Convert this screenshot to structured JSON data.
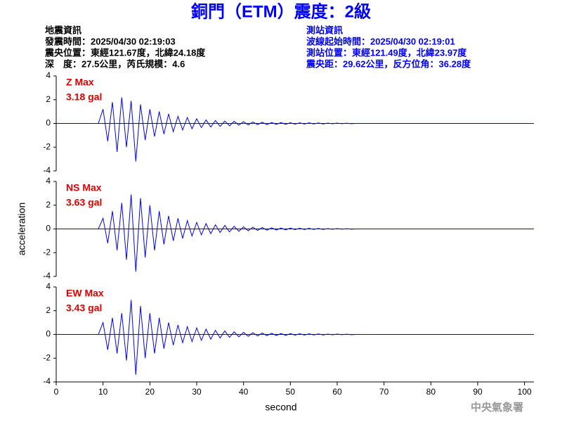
{
  "title": "銅門（ETM）震度：2級",
  "event_info": [
    "地震資訊",
    "發震時間：2025/04/30 02:19:03",
    "震央位置：東經121.67度，北緯24.18度",
    "深　度：27.5公里，芮氏規模：4.6"
  ],
  "station_info": [
    "測站資訊",
    "波線起始時間：2025/04/30 02:19:01",
    "測站位置：東經121.49度，北緯23.97度",
    "震央距：29.62公里，反方位角：36.28度"
  ],
  "footer": "中央氣象署",
  "chart_data": [
    {
      "type": "line",
      "annotation": [
        "Z Max",
        "3.18 gal"
      ],
      "color": "#0000ff",
      "ylim": [
        -4,
        4
      ],
      "yticks": [
        -4,
        -2,
        0,
        2,
        4
      ],
      "xlim": [
        0,
        102
      ],
      "x": [
        0,
        9,
        10,
        11,
        12,
        13,
        14,
        15,
        16,
        17,
        18,
        19,
        20,
        21,
        22,
        23,
        24,
        25,
        26,
        27,
        28,
        29,
        30,
        31,
        32,
        33,
        34,
        35,
        36,
        37,
        38,
        39,
        40,
        41,
        42,
        43,
        44,
        45,
        46,
        47,
        48,
        49,
        50,
        51,
        52,
        53,
        54,
        55,
        56,
        57,
        58,
        59,
        60,
        61,
        62,
        63,
        64,
        101
      ],
      "values": [
        0,
        0,
        1.2,
        -1.5,
        1.8,
        -2.4,
        2.2,
        -2.0,
        1.9,
        -3.2,
        1.6,
        -1.4,
        1.2,
        -1.1,
        1.0,
        -0.9,
        0.8,
        -0.7,
        0.6,
        -0.55,
        0.5,
        -0.45,
        0.4,
        -0.35,
        0.3,
        -0.3,
        0.25,
        -0.25,
        0.2,
        -0.2,
        0.18,
        -0.15,
        0.15,
        -0.12,
        0.12,
        -0.1,
        0.1,
        -0.1,
        0.08,
        -0.08,
        0.07,
        -0.07,
        0.06,
        -0.06,
        0.05,
        -0.05,
        0.05,
        -0.04,
        0.04,
        -0.04,
        0.03,
        -0.03,
        0.03,
        -0.02,
        0.02,
        -0.02,
        0,
        0
      ]
    },
    {
      "type": "line",
      "annotation": [
        "NS Max",
        "3.63 gal"
      ],
      "color": "#0000ff",
      "ylabel": "acceleration",
      "ylim": [
        -4,
        4
      ],
      "yticks": [
        -4,
        -2,
        0,
        2,
        4
      ],
      "xlim": [
        0,
        102
      ],
      "x": [
        0,
        9,
        10,
        11,
        12,
        13,
        14,
        15,
        16,
        17,
        18,
        19,
        20,
        21,
        22,
        23,
        24,
        25,
        26,
        27,
        28,
        29,
        30,
        31,
        32,
        33,
        34,
        35,
        36,
        37,
        38,
        39,
        40,
        41,
        42,
        43,
        44,
        45,
        46,
        47,
        48,
        49,
        50,
        51,
        52,
        53,
        54,
        55,
        56,
        57,
        58,
        59,
        60,
        61,
        62,
        63,
        64,
        101
      ],
      "values": [
        0,
        0,
        0.9,
        -1.2,
        1.5,
        -1.8,
        2.2,
        -2.6,
        2.9,
        -3.6,
        2.6,
        -2.4,
        2.0,
        -1.8,
        1.5,
        -1.3,
        1.1,
        -1.0,
        0.9,
        -0.8,
        0.7,
        -0.6,
        0.55,
        -0.5,
        0.45,
        -0.4,
        0.35,
        -0.3,
        0.3,
        -0.25,
        0.22,
        -0.2,
        0.18,
        -0.16,
        0.15,
        -0.13,
        0.12,
        -0.11,
        0.1,
        -0.09,
        0.08,
        -0.08,
        0.07,
        -0.06,
        0.06,
        -0.05,
        0.05,
        -0.04,
        0.04,
        -0.04,
        0.03,
        -0.03,
        0.03,
        -0.02,
        0.02,
        -0.02,
        0,
        0
      ]
    },
    {
      "type": "line",
      "annotation": [
        "EW Max",
        "3.43 gal"
      ],
      "color": "#0000ff",
      "xlabel": "second",
      "ylim": [
        -4,
        4
      ],
      "yticks": [
        -4,
        -2,
        0,
        2,
        4
      ],
      "xlim": [
        0,
        102
      ],
      "xticks": [
        0,
        10,
        20,
        30,
        40,
        50,
        60,
        70,
        80,
        90,
        100
      ],
      "x": [
        0,
        9,
        10,
        11,
        12,
        13,
        14,
        15,
        16,
        17,
        18,
        19,
        20,
        21,
        22,
        23,
        24,
        25,
        26,
        27,
        28,
        29,
        30,
        31,
        32,
        33,
        34,
        35,
        36,
        37,
        38,
        39,
        40,
        41,
        42,
        43,
        44,
        45,
        46,
        47,
        48,
        49,
        50,
        51,
        52,
        53,
        54,
        55,
        56,
        57,
        58,
        59,
        60,
        61,
        62,
        63,
        64,
        101
      ],
      "values": [
        0,
        0,
        1.0,
        -1.3,
        1.4,
        -1.6,
        1.8,
        -2.2,
        2.9,
        -3.4,
        2.4,
        -2.0,
        1.8,
        -1.6,
        1.4,
        -1.2,
        1.0,
        -0.9,
        0.8,
        -0.7,
        0.65,
        -0.6,
        0.55,
        -0.5,
        0.45,
        -0.4,
        0.35,
        -0.3,
        0.3,
        -0.25,
        0.22,
        -0.2,
        0.18,
        -0.16,
        0.15,
        -0.13,
        0.12,
        -0.11,
        0.1,
        -0.09,
        0.08,
        -0.08,
        0.07,
        -0.06,
        0.06,
        -0.05,
        0.05,
        -0.04,
        0.04,
        -0.04,
        0.03,
        -0.03,
        0.03,
        -0.02,
        0.02,
        -0.02,
        0,
        0
      ]
    }
  ]
}
